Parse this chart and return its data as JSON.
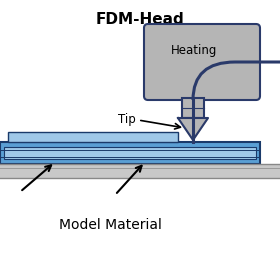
{
  "title": "FDM-Head",
  "title_fontsize": 11,
  "title_fontweight": "bold",
  "label_heating": "Heating",
  "label_tip": "Tip",
  "label_model": "Model Material",
  "bg_color": "#ffffff",
  "heating_box_color": "#b5b5b5",
  "heating_box_edge": "#2a3a6a",
  "nozzle_color": "#b5b5b5",
  "nozzle_edge": "#2a3a6a",
  "filament_color": "#2a3a6a",
  "bed_outer_color": "#5a9fd4",
  "bed_outer_edge": "#1a3a6a",
  "bed_inner_color": "#9fc8e8",
  "bed_base_color": "#c8c8c8",
  "bed_base_edge": "#888888",
  "print_layer_color": "#9fc8e8",
  "print_layer_edge": "#1a3a6a",
  "arrow_color": "#000000",
  "label_fontsize": 8.5,
  "heating_label_fontsize": 8.5
}
